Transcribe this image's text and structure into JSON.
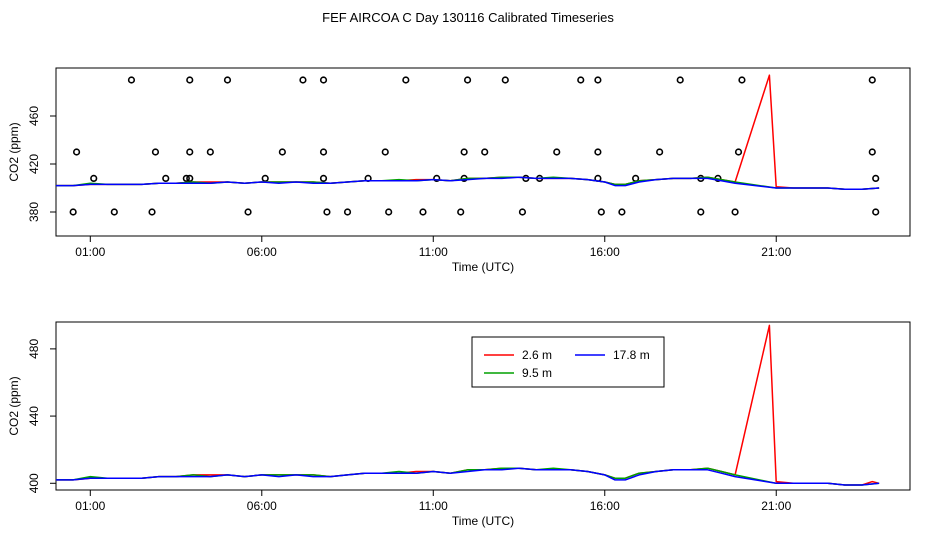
{
  "title": "FEF AIRCOA C  Day 130116  Calibrated Timeseries",
  "colors": {
    "s1": "#ff0000",
    "s2": "#00a000",
    "s3": "#0000ff",
    "points": "#000000",
    "axis": "#000000"
  },
  "chart_data": [
    {
      "type": "line",
      "name": "top-panel",
      "title": "",
      "xlabel": "Time (UTC)",
      "ylabel": "CO2 (ppm)",
      "xlim": [
        0,
        24.9
      ],
      "ylim": [
        360,
        500
      ],
      "xticks": [
        1,
        6,
        11,
        16,
        21
      ],
      "xtick_labels": [
        "01:00",
        "06:00",
        "11:00",
        "16:00",
        "21:00"
      ],
      "yticks": [
        380,
        420,
        460
      ],
      "ytick_labels": [
        "380",
        "420",
        "460"
      ],
      "series": [
        {
          "name": "2.6 m",
          "color": "#ff0000",
          "x": [
            0,
            0.5,
            1,
            1.5,
            2,
            2.5,
            3,
            3.5,
            4,
            4.5,
            5,
            5.5,
            6,
            6.5,
            7,
            7.5,
            8,
            8.5,
            9,
            9.5,
            10,
            10.5,
            11,
            11.5,
            12,
            12.5,
            13,
            13.5,
            14,
            14.5,
            15,
            15.5,
            16,
            16.3,
            16.6,
            17,
            17.5,
            18,
            18.5,
            19,
            19.4,
            19.8,
            20.8,
            21,
            21.5,
            22,
            22.5,
            23,
            23.5,
            24
          ],
          "values": [
            402,
            402,
            403,
            403,
            403,
            403,
            404,
            404,
            405,
            405,
            405,
            404,
            405,
            405,
            405,
            405,
            404,
            405,
            406,
            406,
            406,
            407,
            407,
            406,
            408,
            408,
            409,
            409,
            408,
            408,
            408,
            407,
            405,
            403,
            403,
            406,
            407,
            408,
            408,
            409,
            407,
            405,
            494,
            401,
            400,
            400,
            400,
            399,
            399,
            400
          ]
        },
        {
          "name": "9.5 m",
          "color": "#00a000",
          "x": [
            0,
            0.5,
            1,
            1.5,
            2,
            2.5,
            3,
            3.5,
            4,
            4.5,
            5,
            5.5,
            6,
            6.5,
            7,
            7.5,
            8,
            8.5,
            9,
            9.5,
            10,
            10.5,
            11,
            11.5,
            12,
            12.5,
            13,
            13.5,
            14,
            14.5,
            15,
            15.5,
            16,
            16.3,
            16.6,
            17,
            17.5,
            18,
            18.5,
            19,
            19.4,
            19.8,
            21,
            21.5,
            22,
            22.5,
            23,
            23.5,
            24
          ],
          "values": [
            402,
            402,
            404,
            403,
            403,
            403,
            404,
            404,
            405,
            404,
            405,
            404,
            405,
            405,
            405,
            405,
            404,
            405,
            406,
            406,
            407,
            406,
            407,
            406,
            408,
            408,
            409,
            409,
            408,
            409,
            408,
            407,
            405,
            403,
            403,
            406,
            407,
            408,
            408,
            409,
            407,
            405,
            400,
            400,
            400,
            400,
            399,
            399,
            400
          ]
        },
        {
          "name": "17.8 m",
          "color": "#0000ff",
          "x": [
            0,
            0.5,
            1,
            1.5,
            2,
            2.5,
            3,
            3.5,
            4,
            4.5,
            5,
            5.5,
            6,
            6.5,
            7,
            7.5,
            8,
            8.5,
            9,
            9.5,
            10,
            10.5,
            11,
            11.5,
            12,
            12.5,
            13,
            13.5,
            14,
            14.5,
            15,
            15.5,
            16,
            16.3,
            16.6,
            17,
            17.5,
            18,
            18.5,
            19,
            19.4,
            19.8,
            21,
            21.5,
            22,
            22.5,
            23,
            23.5,
            24
          ],
          "values": [
            402,
            402,
            403,
            403,
            403,
            403,
            404,
            404,
            404,
            404,
            405,
            404,
            405,
            404,
            405,
            404,
            404,
            405,
            406,
            406,
            406,
            406,
            407,
            406,
            407,
            408,
            408,
            409,
            408,
            408,
            408,
            407,
            405,
            402,
            402,
            405,
            407,
            408,
            408,
            408,
            406,
            404,
            400,
            400,
            400,
            400,
            399,
            399,
            400
          ]
        }
      ],
      "points": {
        "name": "flags",
        "x": [
          2.2,
          3.9,
          5.0,
          7.2,
          7.8,
          10.2,
          12.0,
          13.1,
          15.3,
          15.8,
          18.2,
          20.0,
          23.8,
          0.6,
          2.9,
          3.9,
          4.5,
          6.6,
          7.8,
          9.6,
          11.9,
          12.5,
          14.6,
          15.8,
          17.6,
          19.9,
          23.8,
          1.1,
          3.2,
          3.8,
          3.9,
          6.1,
          7.8,
          9.1,
          11.1,
          11.9,
          13.7,
          14.1,
          15.8,
          16.9,
          18.8,
          19.3,
          23.9,
          0.5,
          1.7,
          2.8,
          5.6,
          7.9,
          8.5,
          9.7,
          10.7,
          11.8,
          13.6,
          15.9,
          16.5,
          18.8,
          19.8,
          23.9
        ],
        "values": [
          490,
          490,
          490,
          490,
          490,
          490,
          490,
          490,
          490,
          490,
          490,
          490,
          490,
          430,
          430,
          430,
          430,
          430,
          430,
          430,
          430,
          430,
          430,
          430,
          430,
          430,
          430,
          408,
          408,
          408,
          408,
          408,
          408,
          408,
          408,
          408,
          408,
          408,
          408,
          408,
          408,
          408,
          408,
          380,
          380,
          380,
          380,
          380,
          380,
          380,
          380,
          380,
          380,
          380,
          380,
          380,
          380,
          380
        ]
      }
    },
    {
      "type": "line",
      "name": "bottom-panel",
      "title": "",
      "xlabel": "Time (UTC)",
      "ylabel": "CO2 (ppm)",
      "xlim": [
        0,
        24.9
      ],
      "ylim": [
        396,
        496
      ],
      "xticks": [
        1,
        6,
        11,
        16,
        21
      ],
      "xtick_labels": [
        "01:00",
        "06:00",
        "11:00",
        "16:00",
        "21:00"
      ],
      "yticks": [
        400,
        440,
        480
      ],
      "ytick_labels": [
        "400",
        "440",
        "480"
      ],
      "legend": {
        "position": "top-right",
        "entries": [
          {
            "label": "2.6 m",
            "color": "#ff0000"
          },
          {
            "label": "17.8 m",
            "color": "#0000ff"
          },
          {
            "label": "9.5 m",
            "color": "#00a000"
          }
        ]
      },
      "series": [
        {
          "name": "2.6 m",
          "color": "#ff0000",
          "x": [
            0,
            0.5,
            1,
            1.5,
            2,
            2.5,
            3,
            3.5,
            4,
            4.5,
            5,
            5.5,
            6,
            6.5,
            7,
            7.5,
            8,
            8.5,
            9,
            9.5,
            10,
            10.5,
            11,
            11.5,
            12,
            12.5,
            13,
            13.5,
            14,
            14.5,
            15,
            15.5,
            16,
            16.3,
            16.6,
            17,
            17.5,
            18,
            18.5,
            19,
            19.4,
            19.8,
            20.8,
            21,
            21.5,
            22,
            22.5,
            23,
            23.5,
            23.8,
            24
          ],
          "values": [
            402,
            402,
            403,
            403,
            403,
            403,
            404,
            404,
            405,
            405,
            405,
            404,
            405,
            405,
            405,
            405,
            404,
            405,
            406,
            406,
            406,
            407,
            407,
            406,
            408,
            408,
            409,
            409,
            408,
            408,
            408,
            407,
            405,
            403,
            403,
            406,
            407,
            408,
            408,
            409,
            407,
            405,
            494,
            401,
            400,
            400,
            400,
            399,
            399,
            401,
            400
          ]
        },
        {
          "name": "9.5 m",
          "color": "#00a000",
          "x": [
            0,
            0.5,
            1,
            1.5,
            2,
            2.5,
            3,
            3.5,
            4,
            4.5,
            5,
            5.5,
            6,
            6.5,
            7,
            7.5,
            8,
            8.5,
            9,
            9.5,
            10,
            10.5,
            11,
            11.5,
            12,
            12.5,
            13,
            13.5,
            14,
            14.5,
            15,
            15.5,
            16,
            16.3,
            16.6,
            17,
            17.5,
            18,
            18.5,
            19,
            19.4,
            19.8,
            21,
            21.5,
            22,
            22.5,
            23,
            23.5,
            24
          ],
          "values": [
            402,
            402,
            404,
            403,
            403,
            403,
            404,
            404,
            405,
            404,
            405,
            404,
            405,
            405,
            405,
            405,
            404,
            405,
            406,
            406,
            407,
            406,
            407,
            406,
            408,
            408,
            409,
            409,
            408,
            409,
            408,
            407,
            405,
            403,
            403,
            406,
            407,
            408,
            408,
            409,
            407,
            405,
            400,
            400,
            400,
            400,
            399,
            399,
            400
          ]
        },
        {
          "name": "17.8 m",
          "color": "#0000ff",
          "x": [
            0,
            0.5,
            1,
            1.5,
            2,
            2.5,
            3,
            3.5,
            4,
            4.5,
            5,
            5.5,
            6,
            6.5,
            7,
            7.5,
            8,
            8.5,
            9,
            9.5,
            10,
            10.5,
            11,
            11.5,
            12,
            12.5,
            13,
            13.5,
            14,
            14.5,
            15,
            15.5,
            16,
            16.3,
            16.6,
            17,
            17.5,
            18,
            18.5,
            19,
            19.4,
            19.8,
            21,
            21.5,
            22,
            22.5,
            23,
            23.5,
            24
          ],
          "values": [
            402,
            402,
            403,
            403,
            403,
            403,
            404,
            404,
            404,
            404,
            405,
            404,
            405,
            404,
            405,
            404,
            404,
            405,
            406,
            406,
            406,
            406,
            407,
            406,
            407,
            408,
            408,
            409,
            408,
            408,
            408,
            407,
            405,
            402,
            402,
            405,
            407,
            408,
            408,
            408,
            406,
            404,
            400,
            400,
            400,
            400,
            399,
            399,
            400
          ]
        }
      ]
    }
  ]
}
